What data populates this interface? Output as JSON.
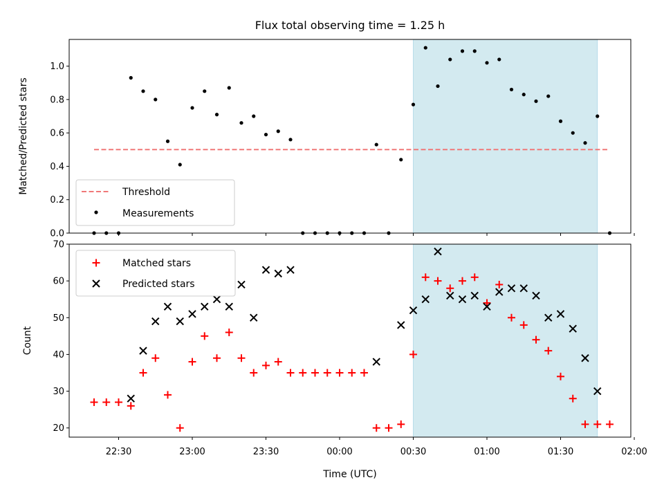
{
  "chart_data": [
    {
      "type": "scatter",
      "title": "Flux total observing time = 1.25 h",
      "ylabel": "Matched/Predicted stars",
      "ylim": [
        0,
        1.16
      ],
      "yticks": [
        "0.0",
        "0.2",
        "0.4",
        "0.6",
        "0.8",
        "1.0"
      ],
      "threshold": 0.5,
      "threshold_color": "#f07878",
      "shaded_region": [
        "00:30",
        "01:45"
      ],
      "shaded_color": "#d3eaf0",
      "legend_position": "lower-left",
      "legend": [
        {
          "label": "Threshold",
          "style": "dashed-line",
          "color": "#f07878"
        },
        {
          "label": "Measurements",
          "style": "dot",
          "color": "#000000"
        }
      ],
      "series": [
        {
          "name": "Measurements",
          "color": "#000000",
          "x": [
            "22:20",
            "22:25",
            "22:30",
            "22:35",
            "22:40",
            "22:45",
            "22:50",
            "22:55",
            "23:00",
            "23:05",
            "23:10",
            "23:15",
            "23:20",
            "23:25",
            "23:30",
            "23:35",
            "23:40",
            "23:45",
            "23:50",
            "23:55",
            "00:00",
            "00:05",
            "00:10",
            "00:15",
            "00:20",
            "00:25",
            "00:30",
            "00:35",
            "00:40",
            "00:45",
            "00:50",
            "00:55",
            "01:00",
            "01:05",
            "01:10",
            "01:15",
            "01:20",
            "01:25",
            "01:30",
            "01:35",
            "01:40",
            "01:45",
            "01:50"
          ],
          "y": [
            0,
            0,
            0,
            0.93,
            0.85,
            0.8,
            0.55,
            0.41,
            0.75,
            0.85,
            0.71,
            0.87,
            0.66,
            0.7,
            0.59,
            0.61,
            0.56,
            0,
            0,
            0,
            0,
            0,
            0,
            0.53,
            0,
            0.44,
            0.77,
            1.11,
            0.88,
            1.04,
            1.09,
            1.09,
            1.02,
            1.04,
            0.86,
            0.83,
            0.79,
            0.82,
            0.67,
            0.6,
            0.54,
            0.7,
            0
          ]
        }
      ]
    },
    {
      "type": "scatter",
      "xlabel": "Time (UTC)",
      "ylabel": "Count",
      "ylim": [
        17.5,
        70
      ],
      "yticks": [
        "20",
        "30",
        "40",
        "50",
        "60",
        "70"
      ],
      "xtick_labels": [
        "22:30",
        "23:00",
        "23:30",
        "00:00",
        "00:30",
        "01:00",
        "01:30",
        "02:00"
      ],
      "shaded_region": [
        "00:30",
        "01:45"
      ],
      "shaded_color": "#d3eaf0",
      "legend_position": "upper-left",
      "legend": [
        {
          "label": "Matched stars",
          "style": "plus",
          "color": "#ff0000"
        },
        {
          "label": "Predicted stars",
          "style": "cross",
          "color": "#000000"
        }
      ],
      "series": [
        {
          "name": "Matched stars",
          "marker": "plus",
          "color": "#ff0000",
          "x": [
            "22:20",
            "22:25",
            "22:30",
            "22:35",
            "22:40",
            "22:45",
            "22:50",
            "22:55",
            "23:00",
            "23:05",
            "23:10",
            "23:15",
            "23:20",
            "23:25",
            "23:30",
            "23:35",
            "23:40",
            "23:45",
            "23:50",
            "23:55",
            "00:00",
            "00:05",
            "00:10",
            "00:15",
            "00:20",
            "00:25",
            "00:30",
            "00:35",
            "00:40",
            "00:45",
            "00:50",
            "00:55",
            "01:00",
            "01:05",
            "01:10",
            "01:15",
            "01:20",
            "01:25",
            "01:30",
            "01:35",
            "01:40",
            "01:45",
            "01:50"
          ],
          "y": [
            27,
            27,
            27,
            26,
            35,
            39,
            29,
            20,
            38,
            45,
            39,
            46,
            39,
            35,
            37,
            38,
            35,
            35,
            35,
            35,
            35,
            35,
            35,
            20,
            20,
            21,
            40,
            61,
            60,
            58,
            60,
            61,
            54,
            59,
            50,
            48,
            44,
            41,
            34,
            28,
            21,
            21,
            21
          ]
        },
        {
          "name": "Predicted stars",
          "marker": "cross",
          "color": "#000000",
          "x": [
            "22:35",
            "22:40",
            "22:45",
            "22:50",
            "22:55",
            "23:00",
            "23:05",
            "23:10",
            "23:15",
            "23:20",
            "23:25",
            "23:30",
            "23:35",
            "23:40",
            "00:15",
            "00:25",
            "00:30",
            "00:35",
            "00:40",
            "00:45",
            "00:50",
            "00:55",
            "01:00",
            "01:05",
            "01:10",
            "01:15",
            "01:20",
            "01:25",
            "01:30",
            "01:35",
            "01:40",
            "01:45"
          ],
          "y": [
            28,
            41,
            49,
            53,
            49,
            51,
            53,
            55,
            53,
            59,
            50,
            63,
            62,
            63,
            38,
            48,
            52,
            55,
            68,
            56,
            55,
            56,
            53,
            57,
            58,
            58,
            56,
            50,
            51,
            47,
            39,
            30
          ]
        }
      ]
    }
  ]
}
